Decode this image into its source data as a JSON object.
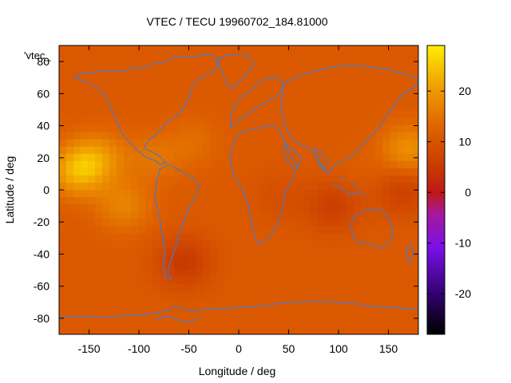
{
  "chart_data": {
    "type": "heatmap",
    "title": "VTEC / TECU 19960702_184.81000",
    "xlabel": "Longitude / deg",
    "ylabel": "Latitude / deg",
    "series_key_label": "'vtec_",
    "xlim": [
      -180,
      180
    ],
    "ylim": [
      -90,
      90
    ],
    "xticks": [
      -150,
      -100,
      -50,
      0,
      50,
      100,
      150
    ],
    "yticks": [
      -80,
      -60,
      -40,
      -20,
      0,
      20,
      40,
      60,
      80
    ],
    "colorbar": {
      "range": [
        -28,
        29
      ],
      "ticks": [
        -20,
        -10,
        0,
        10,
        20
      ],
      "palette": "black-purple-red-orange-yellow"
    },
    "vtec_features": [
      {
        "lon": -162,
        "lat": 12,
        "value": 22
      },
      {
        "lon": -140,
        "lat": 20,
        "value": 18
      },
      {
        "lon": -115,
        "lat": -10,
        "value": 17
      },
      {
        "lon": -85,
        "lat": 20,
        "value": 15
      },
      {
        "lon": -45,
        "lat": 30,
        "value": 14
      },
      {
        "lon": 170,
        "lat": 25,
        "value": 19
      },
      {
        "lon": 120,
        "lat": 10,
        "value": 12
      },
      {
        "lon": -55,
        "lat": -45,
        "value": 5
      },
      {
        "lon": 95,
        "lat": -10,
        "value": 6
      },
      {
        "lon": 165,
        "lat": 0,
        "value": 6
      },
      {
        "lon": 40,
        "lat": -5,
        "value": 9
      }
    ],
    "background_value": 11,
    "grid": false,
    "overlay": "coastlines"
  }
}
